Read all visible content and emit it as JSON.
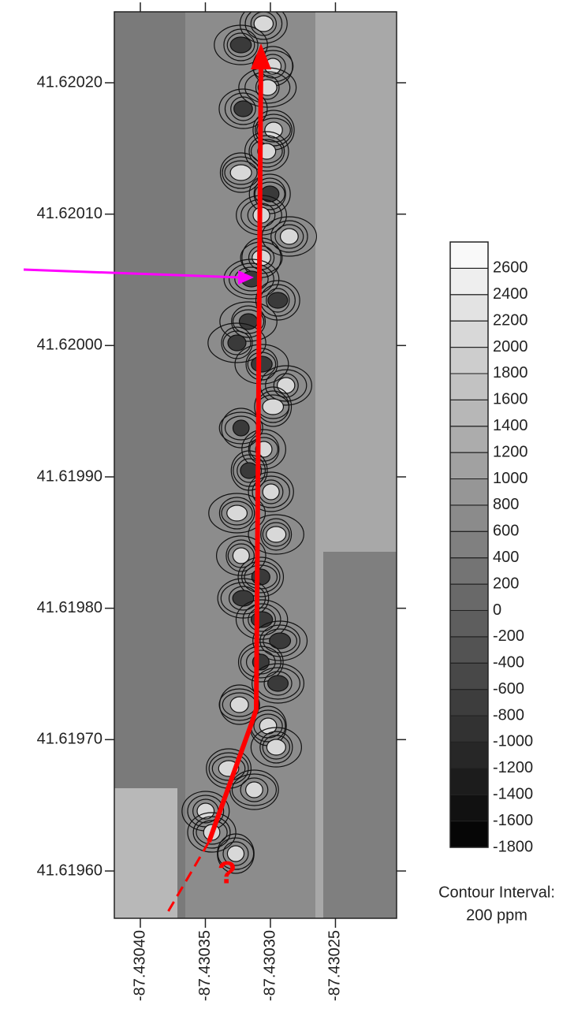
{
  "chart_data": {
    "type": "contour",
    "xlim": [
      -87.43042,
      -87.430203
    ],
    "ylim": [
      41.619564,
      41.620254
    ],
    "xticks": [
      {
        "value": -87.4304,
        "label": "-87.43040"
      },
      {
        "value": -87.43035,
        "label": "-87.43035"
      },
      {
        "value": -87.4303,
        "label": "-87.43030"
      },
      {
        "value": -87.43025,
        "label": "-87.43025"
      }
    ],
    "yticks": [
      {
        "value": 41.6202,
        "label": "41.62020"
      },
      {
        "value": 41.6201,
        "label": "41.62010"
      },
      {
        "value": 41.62,
        "label": "41.62000"
      },
      {
        "value": 41.6199,
        "label": "41.61990"
      },
      {
        "value": 41.6198,
        "label": "41.61980"
      },
      {
        "value": 41.6197,
        "label": "41.61970"
      },
      {
        "value": 41.6196,
        "label": "41.61960"
      }
    ],
    "colorbar": {
      "lim": [
        -1800,
        2800
      ],
      "ticks": [
        -1800,
        -1600,
        -1400,
        -1200,
        -1000,
        -800,
        -600,
        -400,
        -200,
        0,
        200,
        400,
        600,
        800,
        1000,
        1200,
        1400,
        1600,
        1800,
        2000,
        2200,
        2400,
        2600
      ],
      "colormap": [
        "#000000",
        "#ffffff"
      ]
    },
    "annotations": [
      "?"
    ],
    "legend_note": [
      "Contour Interval:",
      "200 ppm"
    ]
  }
}
